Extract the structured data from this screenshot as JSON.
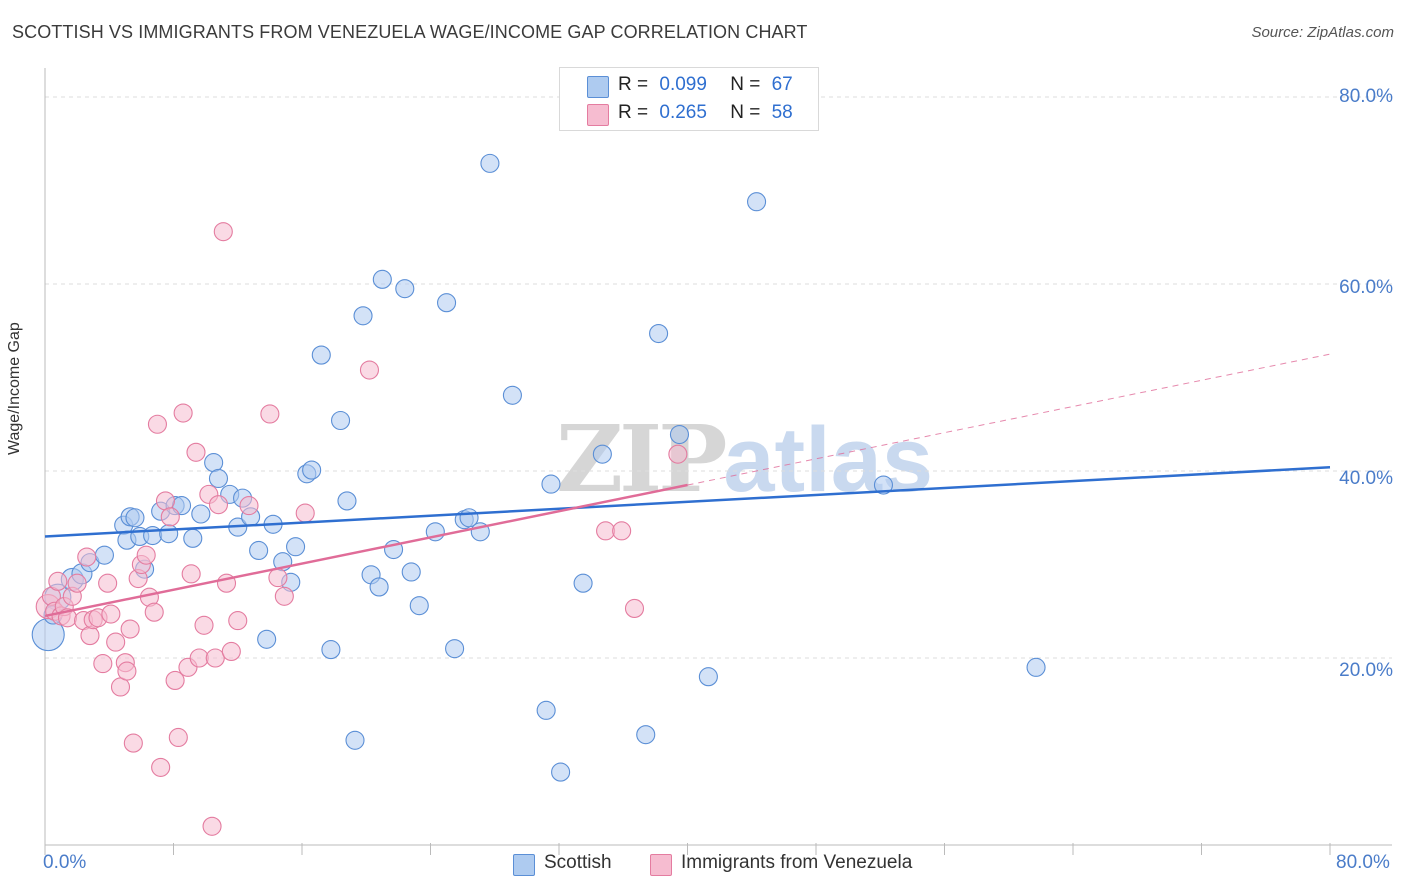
{
  "title": "SCOTTISH VS IMMIGRANTS FROM VENEZUELA WAGE/INCOME GAP CORRELATION CHART",
  "source": "Source: ZipAtlas.com",
  "watermark": {
    "zip": "ZIP",
    "atlas": "atlas"
  },
  "colors": {
    "blue_fill": "#aecbf0",
    "blue_stroke": "#5b8fd6",
    "blue_line": "#2f6fd0",
    "pink_fill": "#f6bcd0",
    "pink_stroke": "#e47ca0",
    "pink_line": "#e06c98",
    "grid": "#dddddd",
    "tick_text": "#4a7cc9"
  },
  "legend": {
    "r_label": "R =",
    "n_label": "N =",
    "series1": {
      "r": "0.099",
      "n": "67"
    },
    "series2": {
      "r": "0.265",
      "n": "58"
    }
  },
  "chart_data": {
    "type": "scatter",
    "title": "SCOTTISH VS IMMIGRANTS FROM VENEZUELA WAGE/INCOME GAP CORRELATION CHART",
    "xlabel": "",
    "ylabel": "Wage/Income Gap",
    "xlim": [
      0,
      80
    ],
    "ylim": [
      0,
      80
    ],
    "x_tick_labels": {
      "left": "0.0%",
      "right": "80.0%"
    },
    "y_ticks": [
      {
        "value": 80,
        "label": "80.0%"
      },
      {
        "value": 60,
        "label": "60.0%"
      },
      {
        "value": 40,
        "label": "40.0%"
      },
      {
        "value": 20,
        "label": "20.0%"
      }
    ],
    "legend_position": "top-center",
    "series": [
      {
        "name": "Scottish",
        "R": 0.099,
        "N": 67,
        "trend": {
          "x0": 0,
          "y0": 33.0,
          "x1": 80,
          "y1": 40.4,
          "dashed_from": null
        },
        "points": [
          [
            0.2,
            22.5,
            16
          ],
          [
            0.8,
            26.5,
            13
          ],
          [
            1.7,
            28.4,
            11
          ],
          [
            2.3,
            29.0,
            10
          ],
          [
            2.8,
            30.2,
            9
          ],
          [
            3.7,
            31.0,
            9
          ],
          [
            4.9,
            34.2,
            9
          ],
          [
            5.1,
            32.6,
            9
          ],
          [
            5.3,
            35.1,
            9
          ],
          [
            5.6,
            35.0,
            9
          ],
          [
            5.9,
            33.0,
            9
          ],
          [
            6.2,
            29.5,
            9
          ],
          [
            6.7,
            33.1,
            9
          ],
          [
            7.2,
            35.7,
            9
          ],
          [
            7.7,
            33.3,
            9
          ],
          [
            8.1,
            36.3,
            9
          ],
          [
            8.5,
            36.3,
            9
          ],
          [
            9.2,
            32.8,
            9
          ],
          [
            9.7,
            35.4,
            9
          ],
          [
            10.5,
            40.9,
            9
          ],
          [
            10.8,
            39.2,
            9
          ],
          [
            11.5,
            37.5,
            9
          ],
          [
            12.0,
            34.0,
            9
          ],
          [
            12.3,
            37.1,
            9
          ],
          [
            12.8,
            35.1,
            9
          ],
          [
            13.3,
            31.5,
            9
          ],
          [
            13.8,
            22.0,
            9
          ],
          [
            14.2,
            34.3,
            9
          ],
          [
            14.8,
            30.3,
            9
          ],
          [
            15.3,
            28.1,
            9
          ],
          [
            15.6,
            31.9,
            9
          ],
          [
            16.3,
            39.7,
            9
          ],
          [
            16.6,
            40.1,
            9
          ],
          [
            17.2,
            52.4,
            9
          ],
          [
            17.8,
            20.9,
            9
          ],
          [
            18.4,
            45.4,
            9
          ],
          [
            18.8,
            36.8,
            9
          ],
          [
            19.3,
            11.2,
            9
          ],
          [
            19.8,
            56.6,
            9
          ],
          [
            20.3,
            28.9,
            9
          ],
          [
            20.8,
            27.6,
            9
          ],
          [
            21.0,
            60.5,
            9
          ],
          [
            21.7,
            31.6,
            9
          ],
          [
            22.4,
            59.5,
            9
          ],
          [
            22.8,
            29.2,
            9
          ],
          [
            23.3,
            25.6,
            9
          ],
          [
            24.3,
            33.5,
            9
          ],
          [
            25.0,
            58.0,
            9
          ],
          [
            25.5,
            21.0,
            9
          ],
          [
            26.1,
            34.8,
            9
          ],
          [
            26.4,
            35.0,
            9
          ],
          [
            27.1,
            33.5,
            9
          ],
          [
            27.7,
            72.9,
            9
          ],
          [
            29.1,
            48.1,
            9
          ],
          [
            31.2,
            14.4,
            9
          ],
          [
            31.5,
            38.6,
            9
          ],
          [
            32.1,
            7.8,
            9
          ],
          [
            33.5,
            28.0,
            9
          ],
          [
            34.7,
            41.8,
            9
          ],
          [
            37.4,
            11.8,
            9
          ],
          [
            38.2,
            54.7,
            9
          ],
          [
            39.5,
            43.9,
            9
          ],
          [
            41.3,
            18.0,
            9
          ],
          [
            44.3,
            68.8,
            9
          ],
          [
            52.2,
            38.5,
            9
          ],
          [
            61.7,
            19.0,
            9
          ],
          [
            0.5,
            24.6,
            9
          ]
        ]
      },
      {
        "name": "Immigrants from Venezuela",
        "R": 0.265,
        "N": 58,
        "trend": {
          "x0": 0,
          "y0": 24.5,
          "x1": 40,
          "y1": 38.5,
          "dash_to_x": 80,
          "dash_to_y": 52.5
        },
        "points": [
          [
            0.2,
            25.5,
            12
          ],
          [
            0.4,
            26.6,
            9
          ],
          [
            0.6,
            25.0,
            9
          ],
          [
            0.8,
            28.2,
            9
          ],
          [
            1.0,
            24.5,
            9
          ],
          [
            1.2,
            25.5,
            9
          ],
          [
            1.4,
            24.3,
            9
          ],
          [
            1.7,
            26.6,
            9
          ],
          [
            2.0,
            28.0,
            9
          ],
          [
            2.4,
            24.0,
            9
          ],
          [
            2.6,
            30.8,
            9
          ],
          [
            2.8,
            22.4,
            9
          ],
          [
            3.0,
            24.1,
            9
          ],
          [
            3.3,
            24.3,
            9
          ],
          [
            3.6,
            19.4,
            9
          ],
          [
            3.9,
            28.0,
            9
          ],
          [
            4.1,
            24.7,
            9
          ],
          [
            4.4,
            21.7,
            9
          ],
          [
            4.7,
            16.9,
            9
          ],
          [
            5.0,
            19.5,
            9
          ],
          [
            5.1,
            18.6,
            9
          ],
          [
            5.3,
            23.1,
            9
          ],
          [
            5.5,
            10.9,
            9
          ],
          [
            5.8,
            28.5,
            9
          ],
          [
            6.0,
            30.0,
            9
          ],
          [
            6.3,
            31.0,
            9
          ],
          [
            6.5,
            26.5,
            9
          ],
          [
            6.8,
            24.9,
            9
          ],
          [
            7.0,
            45.0,
            9
          ],
          [
            7.2,
            8.3,
            9
          ],
          [
            7.5,
            36.8,
            9
          ],
          [
            7.8,
            35.1,
            9
          ],
          [
            8.1,
            17.6,
            9
          ],
          [
            8.3,
            11.5,
            9
          ],
          [
            8.6,
            46.2,
            9
          ],
          [
            8.9,
            19.0,
            9
          ],
          [
            9.1,
            29.0,
            9
          ],
          [
            9.4,
            42.0,
            9
          ],
          [
            9.6,
            20.0,
            9
          ],
          [
            9.9,
            23.5,
            9
          ],
          [
            10.2,
            37.5,
            9
          ],
          [
            10.4,
            2.0,
            9
          ],
          [
            10.6,
            20.0,
            9
          ],
          [
            10.8,
            36.4,
            9
          ],
          [
            11.1,
            65.6,
            9
          ],
          [
            11.3,
            28.0,
            9
          ],
          [
            11.6,
            20.7,
            9
          ],
          [
            12.0,
            24.0,
            9
          ],
          [
            12.7,
            36.3,
            9
          ],
          [
            14.0,
            46.1,
            9
          ],
          [
            14.5,
            28.6,
            9
          ],
          [
            14.9,
            26.6,
            9
          ],
          [
            16.2,
            35.5,
            9
          ],
          [
            20.2,
            50.8,
            9
          ],
          [
            34.9,
            33.6,
            9
          ],
          [
            35.9,
            33.6,
            9
          ],
          [
            36.7,
            25.3,
            9
          ],
          [
            39.4,
            41.8,
            9
          ]
        ]
      }
    ]
  },
  "bottom_legend": {
    "series1": "Scottish",
    "series2": "Immigrants from Venezuela"
  }
}
